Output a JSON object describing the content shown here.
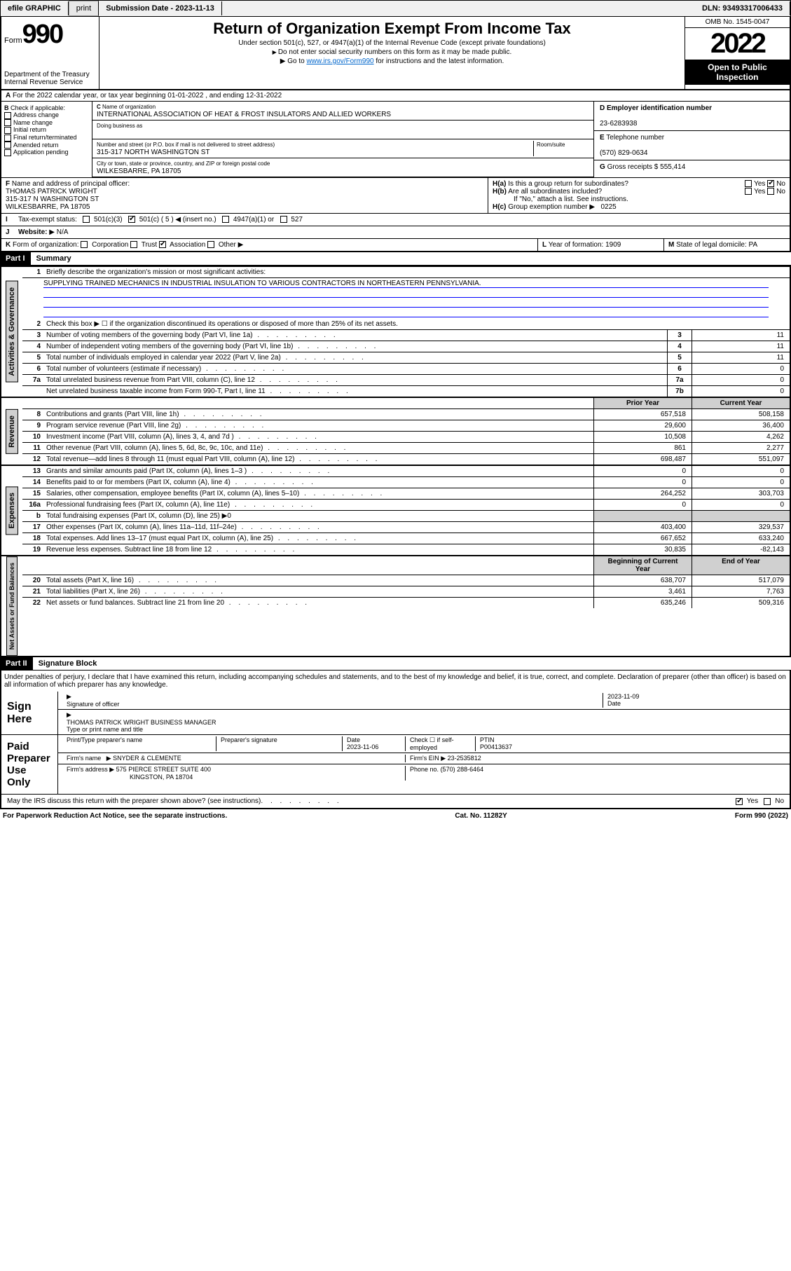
{
  "topbar": {
    "efile": "efile GRAPHIC",
    "print": "print",
    "submission": "Submission Date - 2023-11-13",
    "dln": "DLN: 93493317006433"
  },
  "header": {
    "form_word": "Form",
    "form_num": "990",
    "title": "Return of Organization Exempt From Income Tax",
    "subtitle": "Under section 501(c), 527, or 4947(a)(1) of the Internal Revenue Code (except private foundations)",
    "note1": "Do not enter social security numbers on this form as it may be made public.",
    "note2_pre": "Go to ",
    "note2_link": "www.irs.gov/Form990",
    "note2_post": " for instructions and the latest information.",
    "dept": "Department of the Treasury",
    "irs": "Internal Revenue Service",
    "omb": "OMB No. 1545-0047",
    "year": "2022",
    "inspect1": "Open to Public",
    "inspect2": "Inspection"
  },
  "A": {
    "text": "For the 2022 calendar year, or tax year beginning 01-01-2022     , and ending 12-31-2022"
  },
  "B": {
    "label": "Check if applicable:",
    "items": [
      "Address change",
      "Name change",
      "Initial return",
      "Final return/terminated",
      "Amended return",
      "Application pending"
    ]
  },
  "C": {
    "name_lbl": "Name of organization",
    "name": "INTERNATIONAL ASSOCIATION OF HEAT & FROST INSULATORS AND ALLIED WORKERS",
    "dba_lbl": "Doing business as",
    "dba": "",
    "addr_lbl": "Number and street (or P.O. box if mail is not delivered to street address)",
    "room_lbl": "Room/suite",
    "addr": "315-317 NORTH WASHINGTON ST",
    "city_lbl": "City or town, state or province, country, and ZIP or foreign postal code",
    "city": "WILKESBARRE, PA  18705"
  },
  "D": {
    "lbl": "Employer identification number",
    "val": "23-6283938"
  },
  "E": {
    "lbl": "Telephone number",
    "val": "(570) 829-0634"
  },
  "G": {
    "lbl": "Gross receipts $",
    "val": "555,414"
  },
  "F": {
    "lbl": "Name and address of principal officer:",
    "name": "THOMAS PATRICK WRIGHT",
    "addr": "315-317 N WASHINGTON ST",
    "city": "WILKESBARRE, PA  18705"
  },
  "H": {
    "a": "Is this a group return for subordinates?",
    "b": "Are all subordinates included?",
    "bnote": "If \"No,\" attach a list. See instructions.",
    "c_lbl": "Group exemption number",
    "c_val": "0225",
    "yes": "Yes",
    "no": "No"
  },
  "I": {
    "lbl": "Tax-exempt status:",
    "opts": [
      "501(c)(3)",
      "501(c) ( 5 ) ◀ (insert no.)",
      "4947(a)(1) or",
      "527"
    ]
  },
  "J": {
    "lbl": "Website:",
    "val": "N/A"
  },
  "K": {
    "lbl": "Form of organization:",
    "opts": [
      "Corporation",
      "Trust",
      "Association",
      "Other"
    ]
  },
  "L": {
    "lbl": "Year of formation:",
    "val": "1909"
  },
  "M": {
    "lbl": "State of legal domicile:",
    "val": "PA"
  },
  "part1": {
    "hdr": "Part I",
    "title": "Summary",
    "q1": "Briefly describe the organization's mission or most significant activities:",
    "mission": "SUPPLYING TRAINED MECHANICS IN INDUSTRIAL INSULATION TO VARIOUS CONTRACTORS IN NORTHEASTERN PENNSYLVANIA.",
    "q2": "Check this box ▶ ☐  if the organization discontinued its operations or disposed of more than 25% of its net assets."
  },
  "sections": {
    "gov": {
      "label": "Activities & Governance",
      "rows": [
        {
          "n": "3",
          "d": "Number of voting members of the governing body (Part VI, line 1a)",
          "box": "3",
          "v": "11"
        },
        {
          "n": "4",
          "d": "Number of independent voting members of the governing body (Part VI, line 1b)",
          "box": "4",
          "v": "11"
        },
        {
          "n": "5",
          "d": "Total number of individuals employed in calendar year 2022 (Part V, line 2a)",
          "box": "5",
          "v": "11"
        },
        {
          "n": "6",
          "d": "Total number of volunteers (estimate if necessary)",
          "box": "6",
          "v": "0"
        },
        {
          "n": "7a",
          "d": "Total unrelated business revenue from Part VIII, column (C), line 12",
          "box": "7a",
          "v": "0"
        },
        {
          "n": "",
          "d": "Net unrelated business taxable income from Form 990-T, Part I, line 11",
          "box": "7b",
          "v": "0"
        }
      ]
    },
    "rev": {
      "label": "Revenue",
      "hdr": [
        "Prior Year",
        "Current Year"
      ],
      "rows": [
        {
          "n": "8",
          "d": "Contributions and grants (Part VIII, line 1h)",
          "p": "657,518",
          "c": "508,158"
        },
        {
          "n": "9",
          "d": "Program service revenue (Part VIII, line 2g)",
          "p": "29,600",
          "c": "36,400"
        },
        {
          "n": "10",
          "d": "Investment income (Part VIII, column (A), lines 3, 4, and 7d )",
          "p": "10,508",
          "c": "4,262"
        },
        {
          "n": "11",
          "d": "Other revenue (Part VIII, column (A), lines 5, 6d, 8c, 9c, 10c, and 11e)",
          "p": "861",
          "c": "2,277"
        },
        {
          "n": "12",
          "d": "Total revenue—add lines 8 through 11 (must equal Part VIII, column (A), line 12)",
          "p": "698,487",
          "c": "551,097"
        }
      ]
    },
    "exp": {
      "label": "Expenses",
      "rows": [
        {
          "n": "13",
          "d": "Grants and similar amounts paid (Part IX, column (A), lines 1–3 )",
          "p": "0",
          "c": "0"
        },
        {
          "n": "14",
          "d": "Benefits paid to or for members (Part IX, column (A), line 4)",
          "p": "0",
          "c": "0"
        },
        {
          "n": "15",
          "d": "Salaries, other compensation, employee benefits (Part IX, column (A), lines 5–10)",
          "p": "264,252",
          "c": "303,703"
        },
        {
          "n": "16a",
          "d": "Professional fundraising fees (Part IX, column (A), line 11e)",
          "p": "0",
          "c": "0"
        },
        {
          "n": "b",
          "d": "Total fundraising expenses (Part IX, column (D), line 25) ▶0",
          "p": "",
          "c": ""
        },
        {
          "n": "17",
          "d": "Other expenses (Part IX, column (A), lines 11a–11d, 11f–24e)",
          "p": "403,400",
          "c": "329,537"
        },
        {
          "n": "18",
          "d": "Total expenses. Add lines 13–17 (must equal Part IX, column (A), line 25)",
          "p": "667,652",
          "c": "633,240"
        },
        {
          "n": "19",
          "d": "Revenue less expenses. Subtract line 18 from line 12",
          "p": "30,835",
          "c": "-82,143"
        }
      ]
    },
    "net": {
      "label": "Net Assets or Fund Balances",
      "hdr": [
        "Beginning of Current Year",
        "End of Year"
      ],
      "rows": [
        {
          "n": "20",
          "d": "Total assets (Part X, line 16)",
          "p": "638,707",
          "c": "517,079"
        },
        {
          "n": "21",
          "d": "Total liabilities (Part X, line 26)",
          "p": "3,461",
          "c": "7,763"
        },
        {
          "n": "22",
          "d": "Net assets or fund balances. Subtract line 21 from line 20",
          "p": "635,246",
          "c": "509,316"
        }
      ]
    }
  },
  "part2": {
    "hdr": "Part II",
    "title": "Signature Block",
    "decl": "Under penalties of perjury, I declare that I have examined this return, including accompanying schedules and statements, and to the best of my knowledge and belief, it is true, correct, and complete. Declaration of preparer (other than officer) is based on all information of which preparer has any knowledge."
  },
  "sign": {
    "lbl": "Sign Here",
    "sig_lbl": "Signature of officer",
    "date_lbl": "Date",
    "date": "2023-11-09",
    "name": "THOMAS PATRICK WRIGHT  BUSINESS MANAGER",
    "name_lbl": "Type or print name and title"
  },
  "prep": {
    "lbl": "Paid Preparer Use Only",
    "c1": "Print/Type preparer's name",
    "c2": "Preparer's signature",
    "c3": "Date",
    "c3v": "2023-11-06",
    "c4": "Check ☐ if self-employed",
    "c5": "PTIN",
    "c5v": "P00413637",
    "firm_lbl": "Firm's name",
    "firm": "SNYDER & CLEMENTE",
    "ein_lbl": "Firm's EIN",
    "ein": "23-2535812",
    "addr_lbl": "Firm's address",
    "addr": "575 PIERCE STREET SUITE 400",
    "addr2": "KINGSTON, PA  18704",
    "phone_lbl": "Phone no.",
    "phone": "(570) 288-6464"
  },
  "discuss": "May the IRS discuss this return with the preparer shown above? (see instructions)",
  "footer": {
    "l": "For Paperwork Reduction Act Notice, see the separate instructions.",
    "m": "Cat. No. 11282Y",
    "r": "Form 990 (2022)"
  }
}
